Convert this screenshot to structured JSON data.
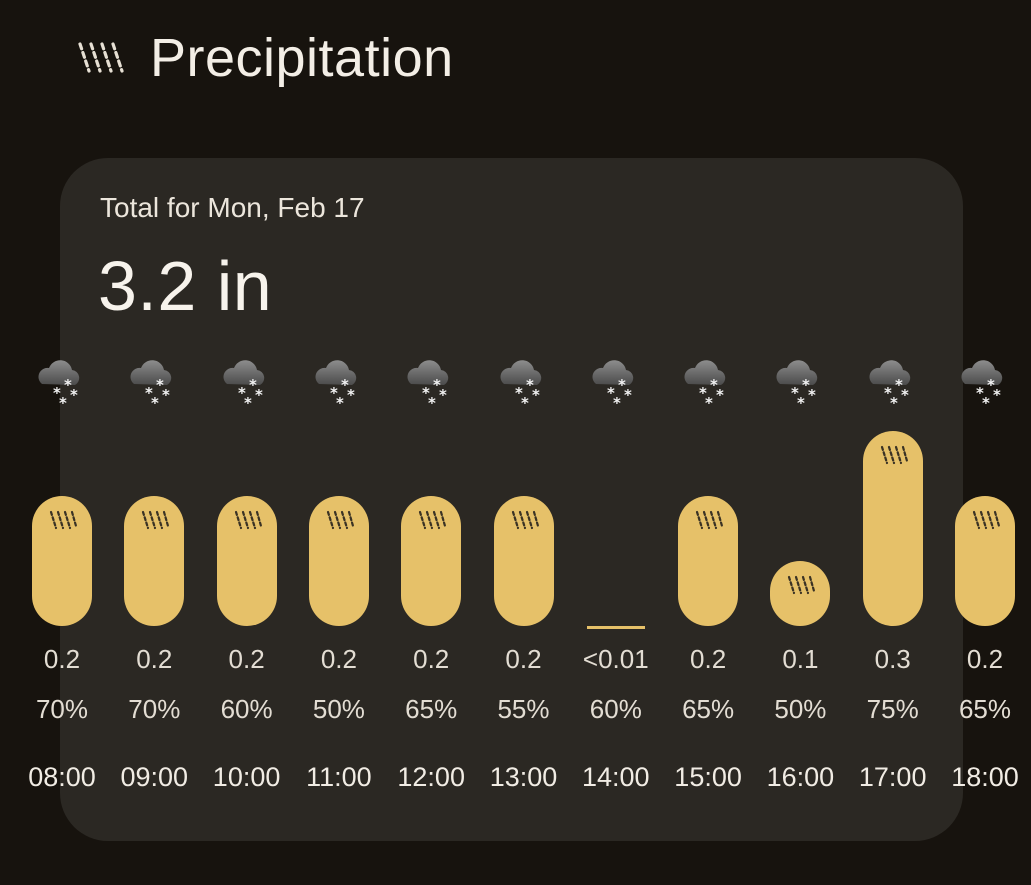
{
  "header": {
    "title": "Precipitation",
    "icon": "precipitation-icon"
  },
  "card": {
    "total_label": "Total for Mon, Feb 17",
    "total_value": "3.2 in"
  },
  "colors": {
    "background": "#17130e",
    "card": "#2b2823",
    "bar": "#e6c169"
  },
  "hours": [
    {
      "time": "08:00",
      "amount": "0.2",
      "chance": "70%",
      "level": 0.2,
      "icon": "snow-icon"
    },
    {
      "time": "09:00",
      "amount": "0.2",
      "chance": "70%",
      "level": 0.2,
      "icon": "snow-icon"
    },
    {
      "time": "10:00",
      "amount": "0.2",
      "chance": "60%",
      "level": 0.2,
      "icon": "snow-icon"
    },
    {
      "time": "11:00",
      "amount": "0.2",
      "chance": "50%",
      "level": 0.2,
      "icon": "snow-icon"
    },
    {
      "time": "12:00",
      "amount": "0.2",
      "chance": "65%",
      "level": 0.2,
      "icon": "snow-icon"
    },
    {
      "time": "13:00",
      "amount": "0.2",
      "chance": "55%",
      "level": 0.2,
      "icon": "snow-icon"
    },
    {
      "time": "14:00",
      "amount": "<0.01",
      "chance": "60%",
      "level": 0,
      "icon": "snow-icon"
    },
    {
      "time": "15:00",
      "amount": "0.2",
      "chance": "65%",
      "level": 0.2,
      "icon": "snow-icon"
    },
    {
      "time": "16:00",
      "amount": "0.1",
      "chance": "50%",
      "level": 0.1,
      "icon": "snow-icon"
    },
    {
      "time": "17:00",
      "amount": "0.3",
      "chance": "75%",
      "level": 0.3,
      "icon": "snow-icon"
    },
    {
      "time": "18:00",
      "amount": "0.2",
      "chance": "65%",
      "level": 0.2,
      "icon": "snow-icon"
    }
  ]
}
